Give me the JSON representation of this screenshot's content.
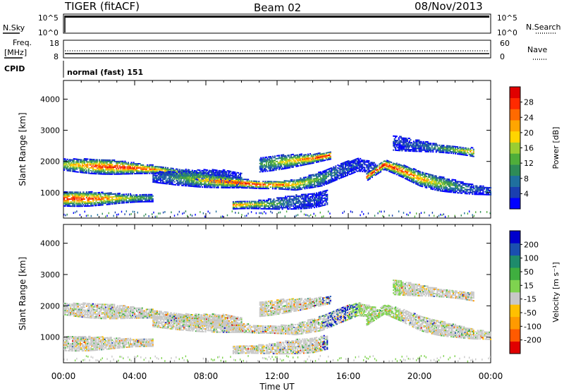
{
  "header": {
    "radar": "TIGER (fitACF)",
    "beam": "Beam 02",
    "date": "08/Nov/2013"
  },
  "strips": {
    "nsky": {
      "label": "N.Sky",
      "ticks": [
        "10^5",
        "10^0"
      ]
    },
    "nsearch": {
      "label": "N.Search",
      "ticks": [
        "10^5",
        "10^0"
      ]
    },
    "freq": {
      "label1": "Freq.",
      "label2": "[MHz]",
      "ticks": [
        "18",
        "8"
      ]
    },
    "nave": {
      "label": "Nave",
      "ticks": [
        "60",
        "0"
      ]
    },
    "cpid": {
      "label": "CPID",
      "value": "normal (fast) 151"
    }
  },
  "chart_data": [
    {
      "type": "heatmap",
      "title": "",
      "xlabel": "Time UT",
      "ylabel": "Slant Range [km]",
      "xlim": [
        0,
        24
      ],
      "ylim": [
        180,
        4600
      ],
      "x_ticks": [
        "00:00",
        "04:00",
        "08:00",
        "12:00",
        "16:00",
        "20:00",
        "00:00"
      ],
      "y_ticks": [
        "1000",
        "2000",
        "3000",
        "4000"
      ],
      "colorbar": {
        "label": "Power [dB]",
        "ticks": [
          "28",
          "24",
          "20",
          "16",
          "12",
          "8",
          "4"
        ],
        "range": [
          0,
          30
        ],
        "colors": [
          "#0000ff",
          "#1a3fb0",
          "#1f6f9e",
          "#2e8b57",
          "#4fae3a",
          "#9acd32",
          "#ffd400",
          "#ffa500",
          "#ff6a00",
          "#ff2a00",
          "#e00000"
        ]
      },
      "bands": [
        {
          "name": "band-a",
          "t": [
            0.0,
            1.5,
            3.5,
            5.0,
            7.0,
            9.0,
            10.0
          ],
          "r": [
            1900,
            1850,
            1800,
            1750,
            1600,
            1500,
            1400
          ]
        },
        {
          "name": "band-b",
          "t": [
            0.0,
            1.5,
            3.5,
            5.0
          ],
          "r": [
            800,
            800,
            820,
            830
          ]
        },
        {
          "name": "band-c",
          "t": [
            5.0,
            7.0,
            9.0,
            11.0,
            13.0,
            14.5,
            15.5,
            16.5,
            17.5
          ],
          "r": [
            1500,
            1450,
            1350,
            1250,
            1250,
            1450,
            1700,
            1900,
            1800
          ]
        },
        {
          "name": "band-d",
          "t": [
            9.5,
            11.0,
            12.0,
            13.0,
            14.0,
            14.8
          ],
          "r": [
            600,
            620,
            650,
            700,
            750,
            850
          ]
        },
        {
          "name": "band-e",
          "t": [
            17.0,
            18.0,
            19.0,
            20.0,
            21.0,
            22.0,
            23.0,
            24.0
          ],
          "r": [
            1500,
            1900,
            1700,
            1450,
            1300,
            1200,
            1100,
            1050
          ]
        },
        {
          "name": "band-f",
          "t": [
            11.0,
            12.5,
            14.0,
            15.0
          ],
          "r": [
            1900,
            2000,
            2100,
            2200
          ]
        },
        {
          "name": "band-g",
          "t": [
            18.5,
            20.0,
            21.5,
            23.0
          ],
          "r": [
            2600,
            2500,
            2400,
            2300
          ]
        }
      ]
    },
    {
      "type": "heatmap",
      "title": "",
      "xlabel": "Time UT",
      "ylabel": "Slant Range [km]",
      "xlim": [
        0,
        24
      ],
      "ylim": [
        180,
        4600
      ],
      "x_ticks": [
        "00:00",
        "04:00",
        "08:00",
        "12:00",
        "16:00",
        "20:00",
        "00:00"
      ],
      "y_ticks": [
        "1000",
        "2000",
        "3000",
        "4000"
      ],
      "colorbar": {
        "label": "Velocity [m s⁻¹]",
        "ticks": [
          "200",
          "100",
          "50",
          "15",
          "-15",
          "-50",
          "-100",
          "-200"
        ],
        "range": [
          -250,
          250
        ],
        "colors": [
          "#e00000",
          "#ff5a00",
          "#ff9a00",
          "#ffc000",
          "#c8c8c8",
          "#7fd34f",
          "#3fae3f",
          "#1e8b6b",
          "#1a4fb0",
          "#0000cc"
        ]
      },
      "bands": [
        {
          "name": "band-a",
          "t": [
            0.0,
            1.5,
            3.5,
            5.0,
            7.0,
            9.0,
            10.0
          ],
          "r": [
            1900,
            1850,
            1800,
            1750,
            1600,
            1500,
            1400
          ]
        },
        {
          "name": "band-b",
          "t": [
            0.0,
            1.5,
            3.5,
            5.0
          ],
          "r": [
            800,
            800,
            820,
            830
          ]
        },
        {
          "name": "band-c",
          "t": [
            5.0,
            7.0,
            9.0,
            11.0,
            13.0,
            14.5,
            15.5,
            16.5,
            17.5
          ],
          "r": [
            1500,
            1450,
            1350,
            1250,
            1250,
            1450,
            1700,
            1900,
            1800
          ]
        },
        {
          "name": "band-d",
          "t": [
            9.5,
            11.0,
            12.0,
            13.0,
            14.0,
            14.8
          ],
          "r": [
            600,
            620,
            650,
            700,
            750,
            850
          ]
        },
        {
          "name": "band-e",
          "t": [
            17.0,
            18.0,
            19.0,
            20.0,
            21.0,
            22.0,
            23.0,
            24.0
          ],
          "r": [
            1500,
            1900,
            1700,
            1450,
            1300,
            1200,
            1100,
            1050
          ]
        },
        {
          "name": "band-f",
          "t": [
            11.0,
            12.5,
            14.0,
            15.0
          ],
          "r": [
            1900,
            2000,
            2100,
            2200
          ]
        },
        {
          "name": "band-g",
          "t": [
            18.5,
            20.0,
            21.5,
            23.0
          ],
          "r": [
            2600,
            2500,
            2400,
            2300
          ]
        }
      ]
    }
  ]
}
